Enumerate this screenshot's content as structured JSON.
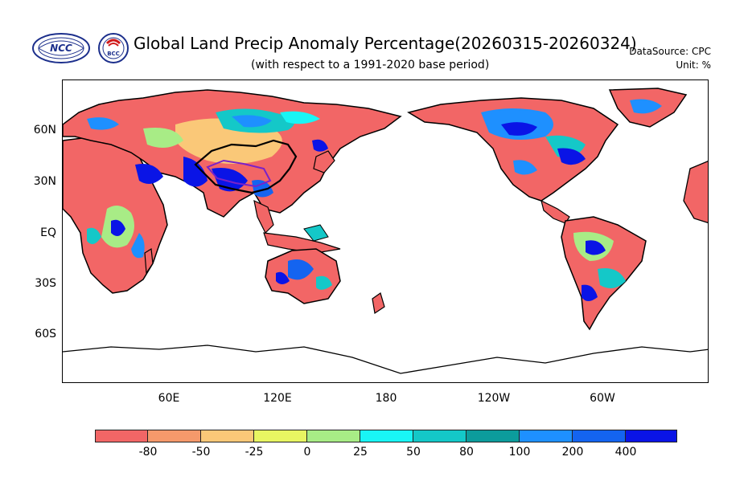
{
  "header": {
    "title": "Global Land Precip Anomaly Percentage(20260315-20260324)",
    "subtitle": "(with respect to a 1991-2020 base period)",
    "datasource": "DataSource:  CPC",
    "unit": "Unit:  %",
    "logo_ncc": "NCC",
    "logo_bcc": "BCC"
  },
  "map": {
    "lat_labels": [
      "60N",
      "30N",
      "EQ",
      "30S",
      "60S"
    ],
    "lon_labels": [
      "60E",
      "120E",
      "180",
      "120W",
      "60W"
    ]
  },
  "colorbar": {
    "labels": [
      "-80",
      "-50",
      "-25",
      "0",
      "25",
      "50",
      "80",
      "100",
      "200",
      "400"
    ],
    "colors": [
      "#f26666",
      "#f5996b",
      "#fac878",
      "#e8f562",
      "#a8ec86",
      "#19f5f5",
      "#14c8c8",
      "#0c9c9c",
      "#1e90ff",
      "#1464f0",
      "#0a14e6"
    ]
  }
}
